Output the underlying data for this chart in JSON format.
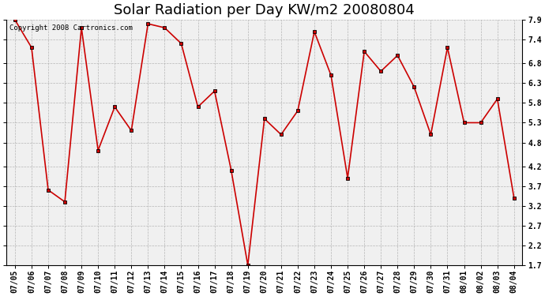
{
  "title": "Solar Radiation per Day KW/m2 20080804",
  "copyright_text": "Copyright 2008 Cartronics.com",
  "dates": [
    "07/05",
    "07/06",
    "07/07",
    "07/08",
    "07/09",
    "07/10",
    "07/11",
    "07/12",
    "07/13",
    "07/14",
    "07/15",
    "07/16",
    "07/17",
    "07/18",
    "07/19",
    "07/20",
    "07/21",
    "07/22",
    "07/23",
    "07/24",
    "07/25",
    "07/26",
    "07/27",
    "07/28",
    "07/29",
    "07/30",
    "07/31",
    "08/01",
    "08/02",
    "08/03",
    "08/04"
  ],
  "values": [
    7.9,
    7.2,
    3.6,
    3.3,
    7.7,
    4.6,
    5.7,
    5.1,
    7.8,
    7.7,
    7.3,
    5.7,
    6.1,
    4.1,
    1.7,
    5.4,
    5.0,
    5.6,
    7.6,
    6.5,
    3.9,
    7.1,
    6.6,
    7.0,
    6.2,
    5.0,
    7.2,
    5.3,
    5.3,
    5.9,
    3.4
  ],
  "line_color": "#cc0000",
  "marker_color": "#000000",
  "bg_color": "#ffffff",
  "plot_bg_color": "#f0f0f0",
  "grid_color": "#b0b0b0",
  "ylim_min": 1.7,
  "ylim_max": 7.9,
  "yticks": [
    1.7,
    2.2,
    2.7,
    3.2,
    3.7,
    4.2,
    4.8,
    5.3,
    5.8,
    6.3,
    6.8,
    7.4,
    7.9
  ],
  "title_fontsize": 13,
  "tick_fontsize": 7,
  "copyright_fontsize": 6.5
}
